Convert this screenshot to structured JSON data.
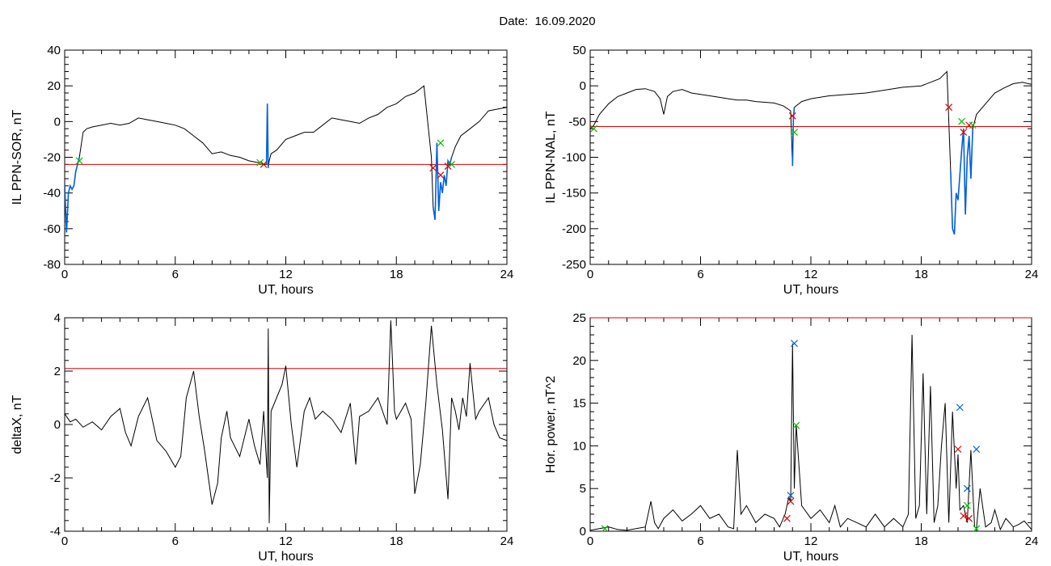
{
  "figure_title": "Date:  16.09.2020",
  "colors": {
    "line": "#000000",
    "threshold": "#e00000",
    "highlight": "#0060e0",
    "marker_red": "#e00000",
    "marker_green": "#00c000",
    "marker_blue": "#0060e0"
  },
  "chart_data": [
    {
      "type": "line",
      "xlabel": "UT, hours",
      "ylabel": "IL PPN-SOR, nT",
      "xlim": [
        0,
        24
      ],
      "ylim": [
        -80,
        40
      ],
      "xticks": [
        0,
        6,
        12,
        18,
        24
      ],
      "yticks": [
        -80,
        -60,
        -40,
        -20,
        0,
        20,
        40
      ],
      "threshold": -24,
      "grid": false,
      "series": [
        {
          "x": [
            0,
            0.1,
            0.2,
            0.3,
            0.4,
            0.5,
            0.6,
            0.8,
            1.0,
            1.2,
            1.5,
            2.0,
            2.5,
            3.0,
            3.5,
            4.0,
            4.5,
            5.0,
            5.5,
            6.0,
            6.5,
            7.0,
            7.5,
            8.0,
            8.5,
            9.0,
            9.5,
            10.0,
            10.5,
            10.8,
            10.95,
            11.0,
            11.05,
            11.1,
            11.2,
            11.5,
            12.0,
            12.5,
            13.0,
            13.5,
            14.0,
            14.5,
            15.0,
            15.5,
            16.0,
            16.5,
            17.0,
            17.5,
            18.0,
            18.5,
            19.0,
            19.5,
            19.9,
            20.0,
            20.1,
            20.2,
            20.3,
            20.4,
            20.5,
            20.6,
            20.7,
            20.8,
            20.9,
            21.0,
            21.2,
            21.5,
            22.0,
            22.5,
            23.0,
            23.5,
            24.0
          ],
          "y": [
            -35,
            -62,
            -40,
            -36,
            -38,
            -36,
            -28,
            -20,
            -6,
            -4,
            -3,
            -2,
            -1,
            -2,
            -1,
            2,
            1,
            0,
            -1,
            -2,
            -4,
            -8,
            -12,
            -18,
            -17,
            -19,
            -20,
            -22,
            -23,
            -24,
            -24,
            10,
            -26,
            -22,
            -18,
            -16,
            -10,
            -8,
            -6,
            -6,
            -2,
            2,
            1,
            0,
            -1,
            2,
            4,
            8,
            10,
            14,
            16,
            20,
            -20,
            -48,
            -55,
            -12,
            -50,
            -34,
            -40,
            -30,
            -36,
            -22,
            -24,
            -20,
            -14,
            -8,
            -4,
            0,
            6,
            7,
            8
          ]
        }
      ],
      "highlight_segments": [
        [
          0,
          0.8
        ],
        [
          20.0,
          21.0
        ],
        [
          10.95,
          11.05
        ]
      ],
      "markers_red": [
        {
          "x": 10.8,
          "y": -24
        },
        {
          "x": 20.0,
          "y": -26
        },
        {
          "x": 20.4,
          "y": -30
        },
        {
          "x": 20.8,
          "y": -25
        }
      ],
      "markers_green": [
        {
          "x": 0.8,
          "y": -22
        },
        {
          "x": 10.6,
          "y": -23
        },
        {
          "x": 20.4,
          "y": -12
        },
        {
          "x": 21.0,
          "y": -24
        }
      ]
    },
    {
      "type": "line",
      "xlabel": "UT, hours",
      "ylabel": "IL PPN-NAL, nT",
      "xlim": [
        0,
        24
      ],
      "ylim": [
        -250,
        50
      ],
      "xticks": [
        0,
        6,
        12,
        18,
        24
      ],
      "yticks": [
        -250,
        -200,
        -150,
        -100,
        -50,
        0,
        50
      ],
      "threshold": -57,
      "grid": false,
      "series": [
        {
          "x": [
            0,
            0.2,
            0.5,
            1.0,
            1.5,
            2.0,
            2.5,
            3.0,
            3.5,
            3.8,
            4.0,
            4.2,
            4.5,
            5.0,
            5.5,
            6.0,
            6.5,
            7.0,
            7.5,
            8.0,
            8.5,
            9.0,
            9.5,
            10.0,
            10.5,
            10.9,
            11.0,
            11.05,
            11.1,
            11.5,
            12.0,
            13.0,
            14.0,
            15.0,
            16.0,
            17.0,
            18.0,
            18.5,
            19.0,
            19.4,
            19.6,
            19.7,
            19.8,
            19.9,
            20.0,
            20.2,
            20.3,
            20.4,
            20.5,
            20.6,
            20.7,
            20.8,
            21.0,
            21.5,
            22.0,
            22.5,
            23.0,
            23.5,
            24.0
          ],
          "y": [
            -60,
            -55,
            -40,
            -25,
            -15,
            -10,
            -5,
            -4,
            -8,
            -18,
            -40,
            -15,
            -8,
            -5,
            -10,
            -12,
            -14,
            -16,
            -18,
            -20,
            -20,
            -22,
            -23,
            -24,
            -28,
            -35,
            -112,
            -45,
            -30,
            -22,
            -18,
            -14,
            -12,
            -10,
            -6,
            -2,
            0,
            5,
            10,
            20,
            -120,
            -200,
            -208,
            -150,
            -160,
            -90,
            -60,
            -180,
            -100,
            -70,
            -130,
            -60,
            -40,
            -25,
            -10,
            -3,
            3,
            5,
            2
          ]
        }
      ],
      "highlight_segments": [
        [
          10.95,
          11.1
        ],
        [
          19.55,
          20.8
        ]
      ],
      "markers_red": [
        {
          "x": 11.0,
          "y": -42
        },
        {
          "x": 19.5,
          "y": -30
        },
        {
          "x": 20.3,
          "y": -65
        },
        {
          "x": 20.6,
          "y": -55
        }
      ],
      "markers_green": [
        {
          "x": 0.2,
          "y": -60
        },
        {
          "x": 11.1,
          "y": -65
        },
        {
          "x": 20.2,
          "y": -50
        },
        {
          "x": 20.8,
          "y": -55
        }
      ]
    },
    {
      "type": "line",
      "xlabel": "UT, hours",
      "ylabel": "deltaX, nT",
      "xlim": [
        0,
        24
      ],
      "ylim": [
        -4,
        4
      ],
      "xticks": [
        0,
        6,
        12,
        18,
        24
      ],
      "yticks": [
        -4,
        -2,
        0,
        2,
        4
      ],
      "threshold": 2.1,
      "grid": false,
      "series": [
        {
          "x": [
            0,
            0.3,
            0.6,
            1.0,
            1.5,
            2.0,
            2.5,
            3.0,
            3.3,
            3.6,
            4.0,
            4.5,
            5.0,
            5.5,
            6.0,
            6.3,
            6.6,
            7.0,
            7.3,
            7.6,
            8.0,
            8.3,
            8.5,
            8.8,
            9.0,
            9.5,
            10.0,
            10.3,
            10.6,
            10.8,
            11.0,
            11.05,
            11.1,
            11.2,
            11.5,
            11.8,
            12.0,
            12.3,
            12.6,
            13.0,
            13.3,
            13.6,
            14.0,
            14.5,
            15.0,
            15.5,
            15.8,
            16.0,
            16.5,
            17.0,
            17.5,
            17.7,
            17.9,
            18.0,
            18.5,
            18.8,
            19.0,
            19.3,
            19.6,
            19.9,
            20.2,
            20.5,
            20.8,
            21.0,
            21.2,
            21.4,
            21.6,
            21.8,
            22.0,
            22.3,
            22.5,
            23.0,
            23.3,
            23.6,
            24.0
          ],
          "y": [
            0.4,
            0.1,
            0.2,
            -0.1,
            0.1,
            -0.2,
            0.3,
            0.6,
            -0.3,
            -0.8,
            0.3,
            1.0,
            -0.6,
            -1.0,
            -1.6,
            -1.2,
            1.0,
            2.0,
            0.3,
            -1.0,
            -3.0,
            -2.2,
            -0.5,
            0.5,
            -0.5,
            -1.2,
            0.2,
            -0.8,
            -1.5,
            0.5,
            -2.0,
            3.6,
            -3.7,
            0.5,
            1.0,
            1.5,
            2.2,
            0.0,
            -1.6,
            0.5,
            1.0,
            0.2,
            0.5,
            0.2,
            -0.3,
            0.8,
            -1.5,
            0.3,
            0.5,
            1.0,
            0.0,
            3.9,
            0.5,
            0.2,
            0.8,
            0.2,
            -2.6,
            -1.5,
            0.8,
            3.7,
            1.5,
            -0.2,
            -2.8,
            1.0,
            0.5,
            -0.2,
            1.0,
            0.3,
            2.3,
            0.2,
            0.5,
            1.0,
            0.0,
            -0.5,
            -0.6
          ]
        }
      ],
      "highlight_segments": [],
      "markers_red": [],
      "markers_green": []
    },
    {
      "type": "line",
      "xlabel": "UT, hours",
      "ylabel": "Hor. power, nT^2",
      "xlim": [
        0,
        24
      ],
      "ylim": [
        0,
        25
      ],
      "xticks": [
        0,
        6,
        12,
        18,
        24
      ],
      "yticks": [
        0,
        5,
        10,
        15,
        20,
        25
      ],
      "threshold": 25,
      "grid": false,
      "series": [
        {
          "x": [
            0,
            0.5,
            1.0,
            1.5,
            2.0,
            2.5,
            3.0,
            3.3,
            3.5,
            3.7,
            4.0,
            4.5,
            5.0,
            5.5,
            6.0,
            6.5,
            7.0,
            7.5,
            7.8,
            8.0,
            8.2,
            8.5,
            9.0,
            9.5,
            10.0,
            10.3,
            10.6,
            10.8,
            10.9,
            11.0,
            11.1,
            11.2,
            11.5,
            12.0,
            12.5,
            13.0,
            13.3,
            13.6,
            14.0,
            14.5,
            15.0,
            15.5,
            16.0,
            16.5,
            17.0,
            17.3,
            17.5,
            17.7,
            17.9,
            18.1,
            18.3,
            18.5,
            18.7,
            18.9,
            19.1,
            19.3,
            19.5,
            19.7,
            19.9,
            20.0,
            20.1,
            20.3,
            20.5,
            20.7,
            20.9,
            21.0,
            21.2,
            21.5,
            21.8,
            22.0,
            22.3,
            22.6,
            23.0,
            23.3,
            23.6,
            24.0
          ],
          "y": [
            0.1,
            0.3,
            0.5,
            0.2,
            0.1,
            0.3,
            0.5,
            3.5,
            1.0,
            0.3,
            1.5,
            2.5,
            1.2,
            2.0,
            3.0,
            1.5,
            2.0,
            0.5,
            0.3,
            9.5,
            2.0,
            3.0,
            1.0,
            2.0,
            1.5,
            0.5,
            2.0,
            4.0,
            3.5,
            22.0,
            5.0,
            12.5,
            3.0,
            1.5,
            2.5,
            1.0,
            3.0,
            0.5,
            1.5,
            1.0,
            0.5,
            2.0,
            0.5,
            1.5,
            0.5,
            2.0,
            23.0,
            1.5,
            3.0,
            18.5,
            2.0,
            17.0,
            1.0,
            3.0,
            10.0,
            15.0,
            1.0,
            14.0,
            5.0,
            9.0,
            2.5,
            3.0,
            1.0,
            9.5,
            0.5,
            0.3,
            5.0,
            0.5,
            1.0,
            2.5,
            0.2,
            1.5,
            0.5,
            0.8,
            1.2,
            0.2
          ]
        }
      ],
      "highlight_segments": [],
      "markers_red": [
        {
          "x": 10.7,
          "y": 1.5
        },
        {
          "x": 10.9,
          "y": 3.5
        },
        {
          "x": 20.0,
          "y": 9.6
        },
        {
          "x": 20.3,
          "y": 1.8
        },
        {
          "x": 20.6,
          "y": 1.5
        }
      ],
      "markers_green": [
        {
          "x": 0.8,
          "y": 0.3
        },
        {
          "x": 11.2,
          "y": 12.4
        },
        {
          "x": 20.5,
          "y": 3.0
        },
        {
          "x": 21.0,
          "y": 0.3
        }
      ],
      "markers_blue": [
        {
          "x": 10.9,
          "y": 4.2
        },
        {
          "x": 11.1,
          "y": 22.0
        },
        {
          "x": 20.1,
          "y": 14.5
        },
        {
          "x": 20.5,
          "y": 5.0
        },
        {
          "x": 21.0,
          "y": 9.6
        }
      ]
    }
  ]
}
